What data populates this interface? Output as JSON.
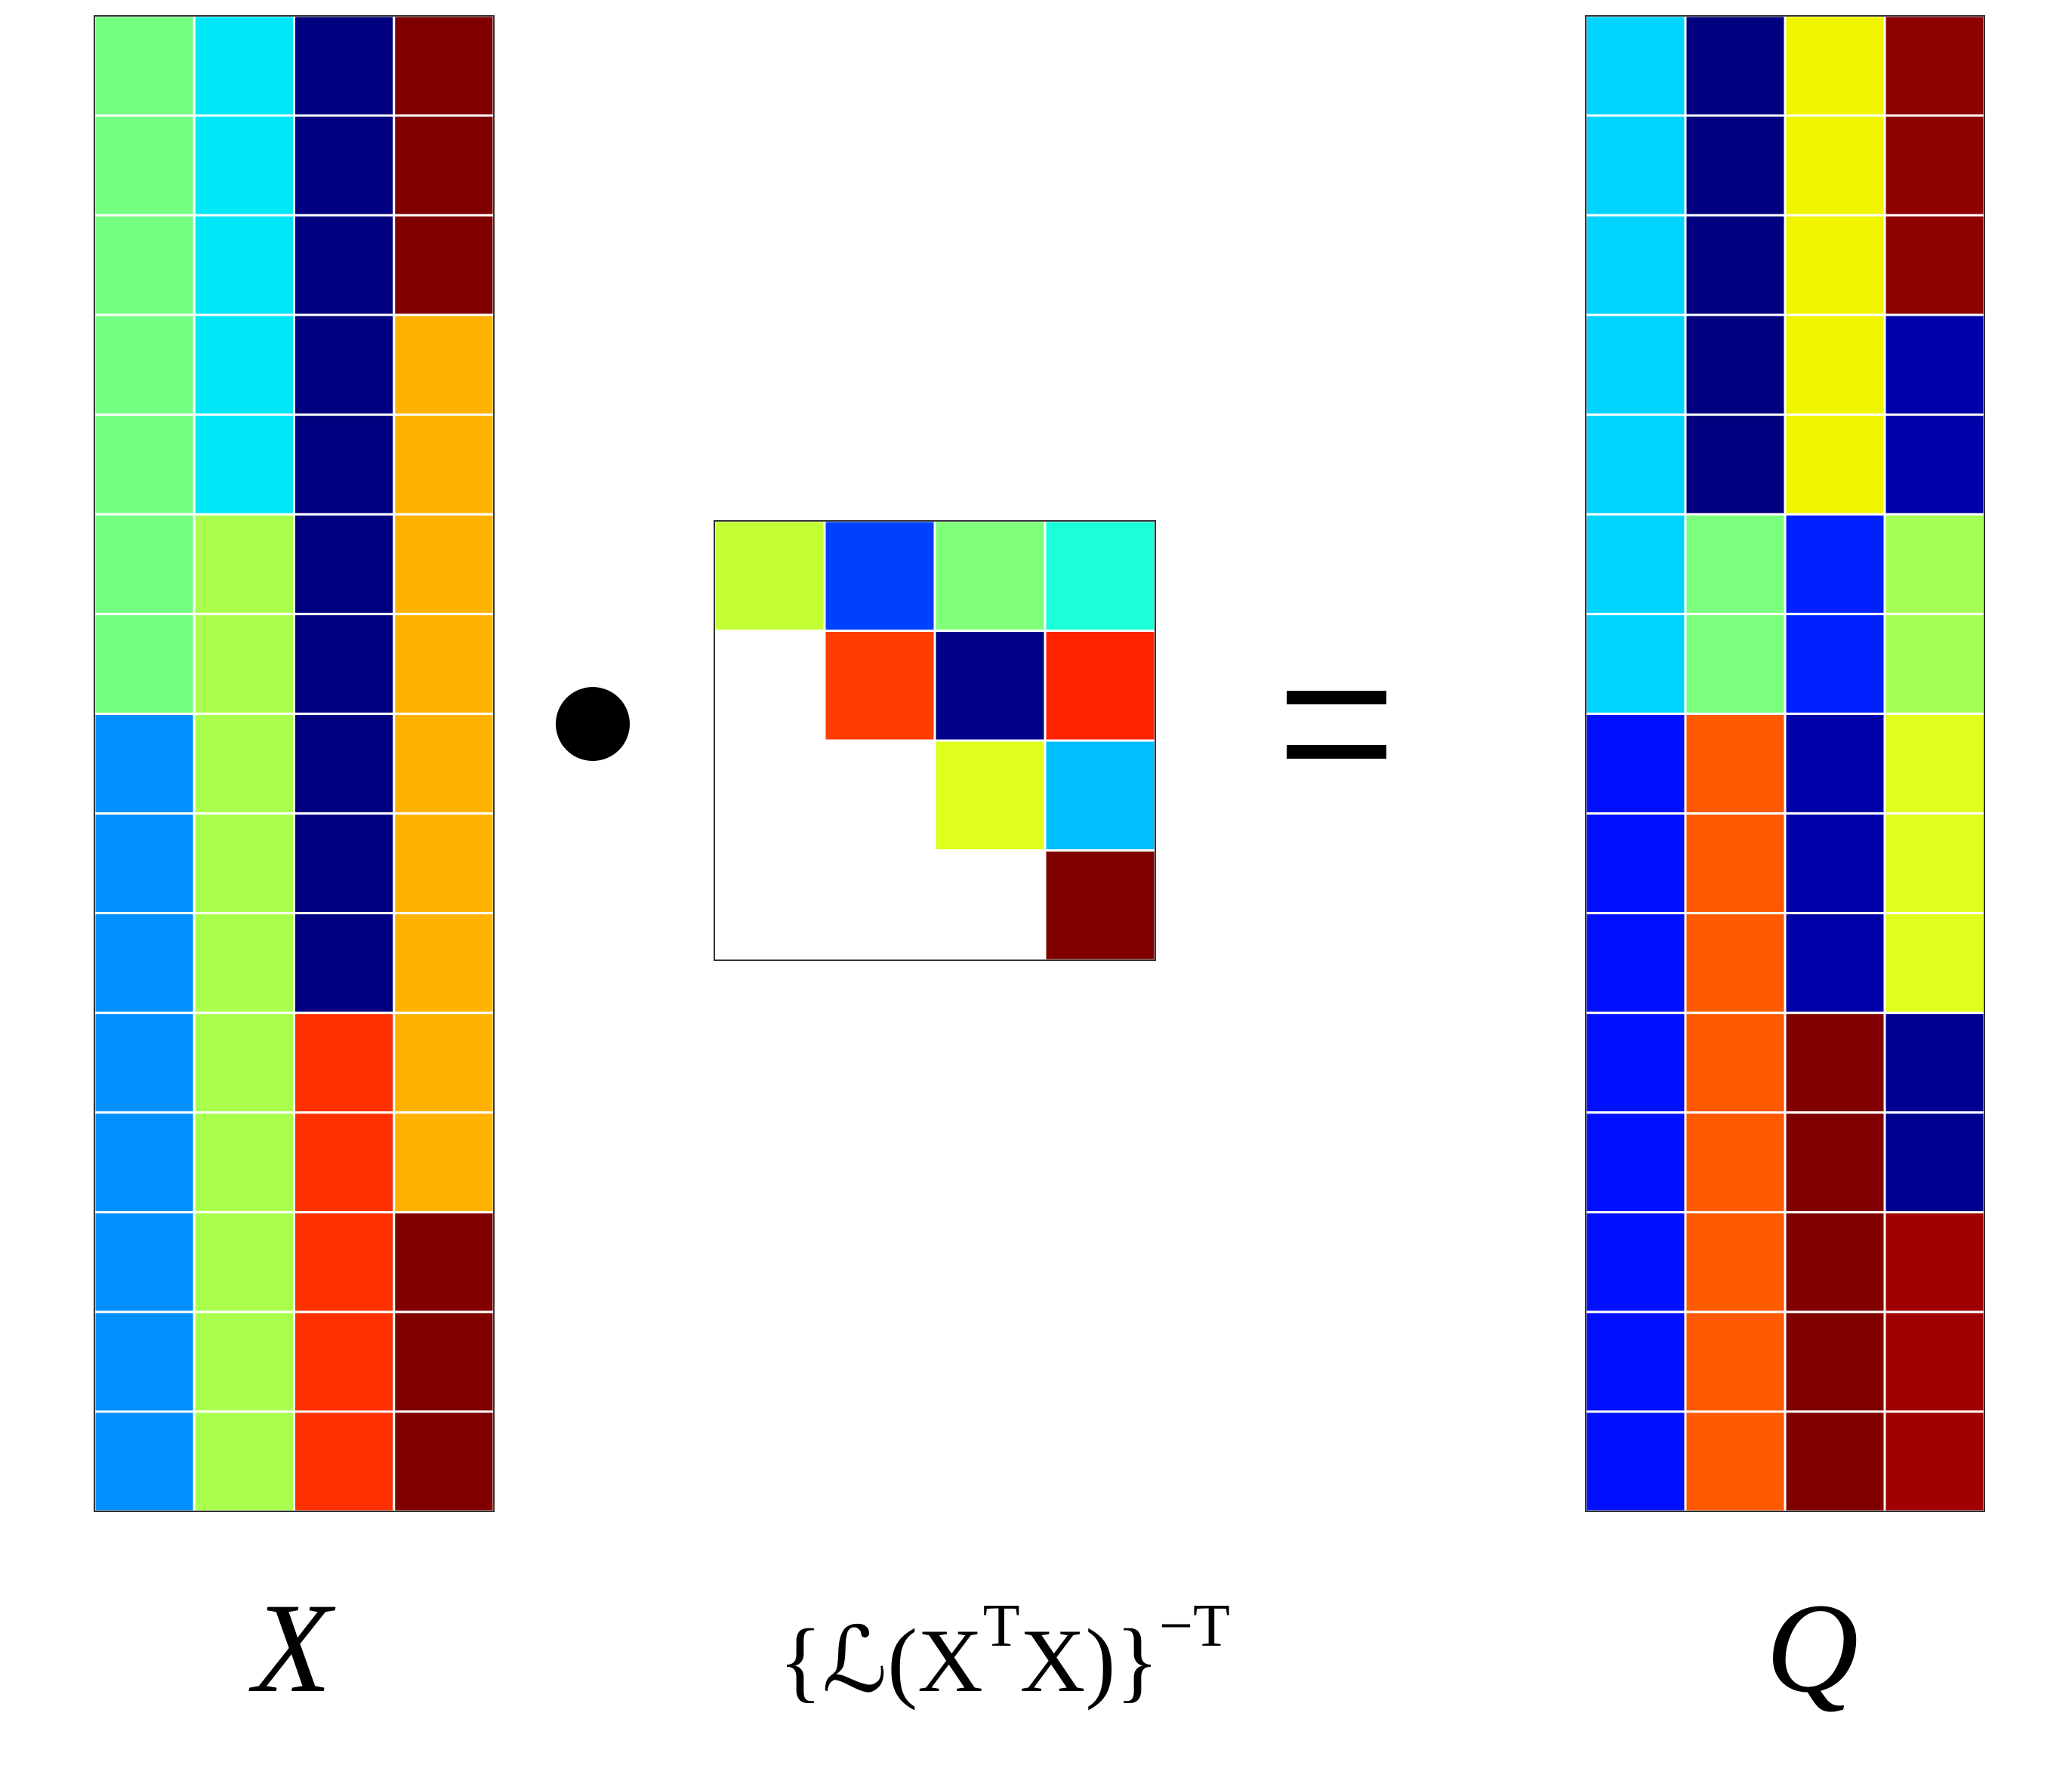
{
  "matrices": [
    {
      "label": "X",
      "rows": [
        [
          "#74ff82",
          "#00e8f8",
          "#000080",
          "#800000"
        ],
        [
          "#74ff82",
          "#00e8f8",
          "#000080",
          "#800000"
        ],
        [
          "#74ff82",
          "#00e8f8",
          "#000080",
          "#800000"
        ],
        [
          "#74ff82",
          "#00e8f8",
          "#000080",
          "#ffb300"
        ],
        [
          "#74ff82",
          "#00e8f8",
          "#000080",
          "#ffb300"
        ],
        [
          "#74ff82",
          "#aaff4d",
          "#000080",
          "#ffb300"
        ],
        [
          "#74ff82",
          "#aaff4d",
          "#000080",
          "#ffb300"
        ],
        [
          "#0090ff",
          "#aaff4d",
          "#000080",
          "#ffb300"
        ],
        [
          "#0090ff",
          "#aaff4d",
          "#000080",
          "#ffb300"
        ],
        [
          "#0090ff",
          "#aaff4d",
          "#000080",
          "#ffb300"
        ],
        [
          "#0090ff",
          "#aaff4d",
          "#ff3000",
          "#ffb300"
        ],
        [
          "#0090ff",
          "#aaff4d",
          "#ff3000",
          "#ffb300"
        ],
        [
          "#0090ff",
          "#aaff4d",
          "#ff3000",
          "#800000"
        ],
        [
          "#0090ff",
          "#aaff4d",
          "#ff3000",
          "#800000"
        ],
        [
          "#0090ff",
          "#aaff4d",
          "#ff3000",
          "#800000"
        ]
      ]
    },
    {
      "label": {
        "base": "{ℒ(X",
        "sup1": "T",
        "mid": "X)}",
        "sup2": "−T"
      },
      "rows": [
        [
          "#c4ff34",
          "#0040ff",
          "#80ff7a",
          "#1affd8"
        ],
        [
          null,
          "#ff3d00",
          "#000088",
          "#ff2400"
        ],
        [
          null,
          null,
          "#dfff1c",
          "#00c0ff"
        ],
        [
          null,
          null,
          null,
          "#800000"
        ]
      ]
    },
    {
      "label": "Q",
      "rows": [
        [
          "#00d4ff",
          "#000080",
          "#f2f500",
          "#8f0000"
        ],
        [
          "#00d4ff",
          "#000080",
          "#f2f500",
          "#8f0000"
        ],
        [
          "#00d4ff",
          "#000080",
          "#f2f500",
          "#8f0000"
        ],
        [
          "#00d4ff",
          "#000080",
          "#f2f500",
          "#0000a8"
        ],
        [
          "#00d4ff",
          "#000080",
          "#f2f500",
          "#0000a8"
        ],
        [
          "#00d4ff",
          "#7aff7e",
          "#0020ff",
          "#a4ff56"
        ],
        [
          "#00d4ff",
          "#7aff7e",
          "#0020ff",
          "#a4ff56"
        ],
        [
          "#0010ff",
          "#ff5a00",
          "#0000a8",
          "#e0ff1f"
        ],
        [
          "#0010ff",
          "#ff5a00",
          "#0000a8",
          "#e0ff1f"
        ],
        [
          "#0010ff",
          "#ff5a00",
          "#0000a8",
          "#e0ff1f"
        ],
        [
          "#0010ff",
          "#ff5a00",
          "#800000",
          "#000090"
        ],
        [
          "#0010ff",
          "#ff5a00",
          "#800000",
          "#000090"
        ],
        [
          "#0010ff",
          "#ff5a00",
          "#800000",
          "#a00000"
        ],
        [
          "#0010ff",
          "#ff5a00",
          "#800000",
          "#a00000"
        ],
        [
          "#0010ff",
          "#ff5a00",
          "#800000",
          "#a00000"
        ]
      ]
    }
  ]
}
